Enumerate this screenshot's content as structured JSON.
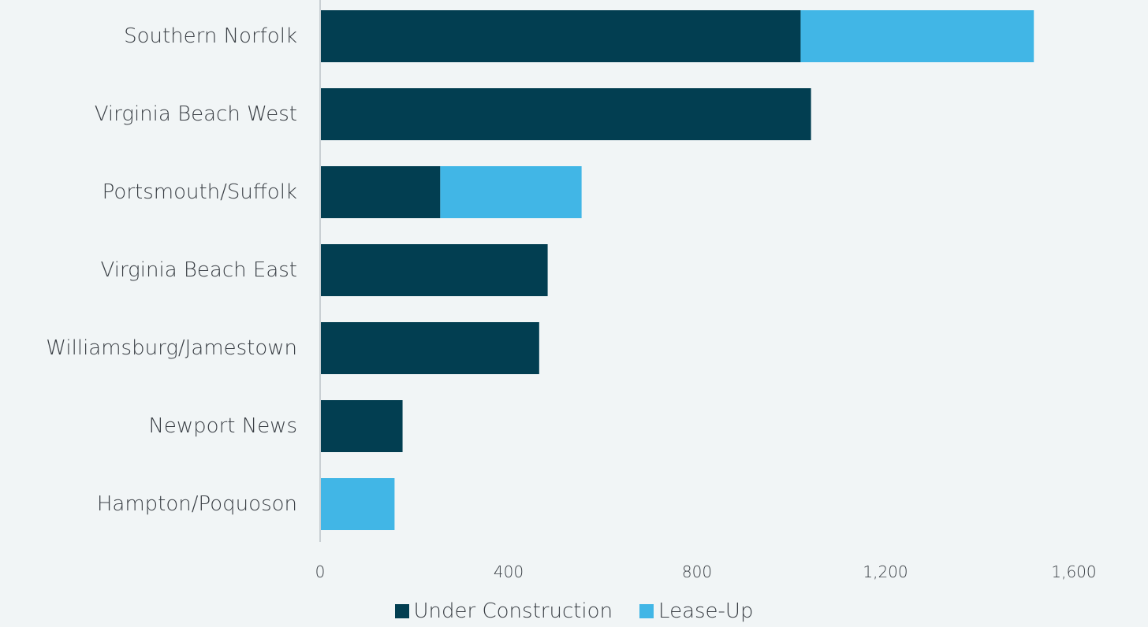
{
  "chart_data": {
    "type": "bar",
    "orientation": "horizontal",
    "stacked": true,
    "categories": [
      "Southern Norfolk",
      "Virginia Beach West",
      "Portsmouth/Suffolk",
      "Virginia Beach East",
      "Williamsburg/Jamestown",
      "Newport News",
      "Hampton/Poquoson"
    ],
    "series": [
      {
        "name": "Under Construction",
        "color": "#023e51",
        "values": [
          1020,
          1042,
          255,
          483,
          465,
          175,
          0
        ]
      },
      {
        "name": "Lease-Up",
        "color": "#41b6e6",
        "values": [
          495,
          0,
          300,
          0,
          0,
          0,
          158
        ]
      }
    ],
    "xticks": [
      "0",
      "400",
      "800",
      "1,200",
      "1,600"
    ],
    "xtick_values": [
      0,
      400,
      800,
      1200,
      1600
    ],
    "xlim": [
      0,
      1600
    ],
    "grid": false,
    "legend_position": "bottom"
  }
}
